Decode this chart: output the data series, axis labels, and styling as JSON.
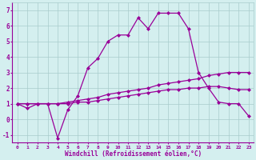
{
  "x": [
    0,
    1,
    2,
    3,
    4,
    5,
    6,
    7,
    8,
    9,
    10,
    11,
    12,
    13,
    14,
    15,
    16,
    17,
    18,
    19,
    20,
    21,
    22,
    23
  ],
  "line_main": [
    1.0,
    0.7,
    1.0,
    1.0,
    -1.2,
    0.6,
    1.5,
    3.3,
    3.9,
    5.0,
    5.4,
    5.4,
    6.5,
    5.8,
    6.8,
    6.8,
    6.8,
    5.8,
    3.0,
    2.0,
    1.1,
    1.0,
    1.0,
    0.2
  ],
  "line_upper_diag": [
    1.0,
    1.0,
    1.0,
    1.0,
    1.0,
    1.1,
    1.2,
    1.3,
    1.4,
    1.6,
    1.7,
    1.8,
    1.9,
    2.0,
    2.2,
    2.3,
    2.4,
    2.5,
    2.6,
    2.8,
    2.9,
    3.0,
    3.0,
    3.0
  ],
  "line_lower_diag": [
    1.0,
    1.0,
    1.0,
    1.0,
    1.0,
    1.0,
    1.1,
    1.1,
    1.2,
    1.3,
    1.4,
    1.5,
    1.6,
    1.7,
    1.8,
    1.9,
    1.9,
    2.0,
    2.0,
    2.1,
    2.1,
    2.0,
    1.9,
    1.9
  ],
  "ylim": [
    -1.5,
    7.5
  ],
  "xlim": [
    -0.5,
    23.5
  ],
  "yticks": [
    -1,
    0,
    1,
    2,
    3,
    4,
    5,
    6,
    7
  ],
  "xlabel": "Windchill (Refroidissement éolien,°C)",
  "line_color": "#990099",
  "bg_color": "#d4efef",
  "grid_color": "#a8cccc",
  "marker": "D",
  "marker_size": 2.0,
  "lw": 0.9
}
